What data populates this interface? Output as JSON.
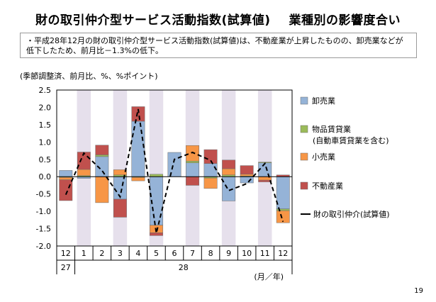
{
  "title": {
    "main": "財の取引仲介型サービス活動指数(試算値)",
    "sub": "業種別の影響度合い"
  },
  "summary": "・平成28年12月の財の取引仲介型サービス活動指数(試算値)は、不動産業が上昇したものの、卸売業などが低下したため、前月比－1.3%の低下。",
  "page_number": "19",
  "chart_data": {
    "type": "bar",
    "subtitle": "(季節調整済、前月比、%、%ポイント)",
    "categories": [
      "12",
      "1",
      "2",
      "3",
      "4",
      "5",
      "6",
      "7",
      "8",
      "9",
      "10",
      "11",
      "12"
    ],
    "year_labels": [
      {
        "label": "27",
        "start": 0,
        "end": 0
      },
      {
        "label": "28",
        "start": 1,
        "end": 12
      }
    ],
    "unit_label": "(月／年)",
    "ylim": [
      -2.0,
      2.5
    ],
    "yticks": [
      "2.5",
      "2.0",
      "1.5",
      "1.0",
      "0.5",
      "0.0",
      "-0.5",
      "-1.0",
      "-1.5",
      "-2.0"
    ],
    "shaded_categories": [
      1,
      3,
      5,
      7,
      9,
      11
    ],
    "series": [
      {
        "name": "卸売業",
        "color": "#95b3d7",
        "values": [
          0.18,
          -0.05,
          0.58,
          -0.65,
          1.6,
          -1.4,
          0.7,
          0.4,
          0.38,
          -0.7,
          -0.18,
          0.4,
          -0.93
        ]
      },
      {
        "name": "物品賃貸業\n(自動車賃貸業を含む)",
        "color": "#9bbb59",
        "values": [
          -0.02,
          0.03,
          0.05,
          0.05,
          -0.02,
          0.07,
          0.0,
          0.05,
          -0.04,
          0.05,
          0.02,
          0.02,
          -0.05
        ]
      },
      {
        "name": "小売業",
        "color": "#f79646",
        "values": [
          -0.07,
          0.18,
          -0.75,
          0.15,
          -0.1,
          -0.22,
          0.0,
          0.45,
          -0.3,
          0.18,
          0.05,
          -0.1,
          -0.35
        ]
      },
      {
        "name": "不動産業",
        "color": "#c0504d",
        "values": [
          -0.6,
          0.5,
          0.28,
          -0.52,
          0.42,
          -0.08,
          0.0,
          -0.25,
          0.4,
          0.25,
          0.25,
          -0.05,
          0.05
        ]
      }
    ],
    "line": {
      "name": "財の取引仲介(試算値)",
      "color": "#000000",
      "values": [
        -0.52,
        0.68,
        0.18,
        -0.58,
        1.95,
        -1.63,
        0.5,
        0.7,
        0.47,
        -0.4,
        -0.2,
        0.38,
        -1.3
      ]
    },
    "legend_position": "right",
    "grid": false
  }
}
